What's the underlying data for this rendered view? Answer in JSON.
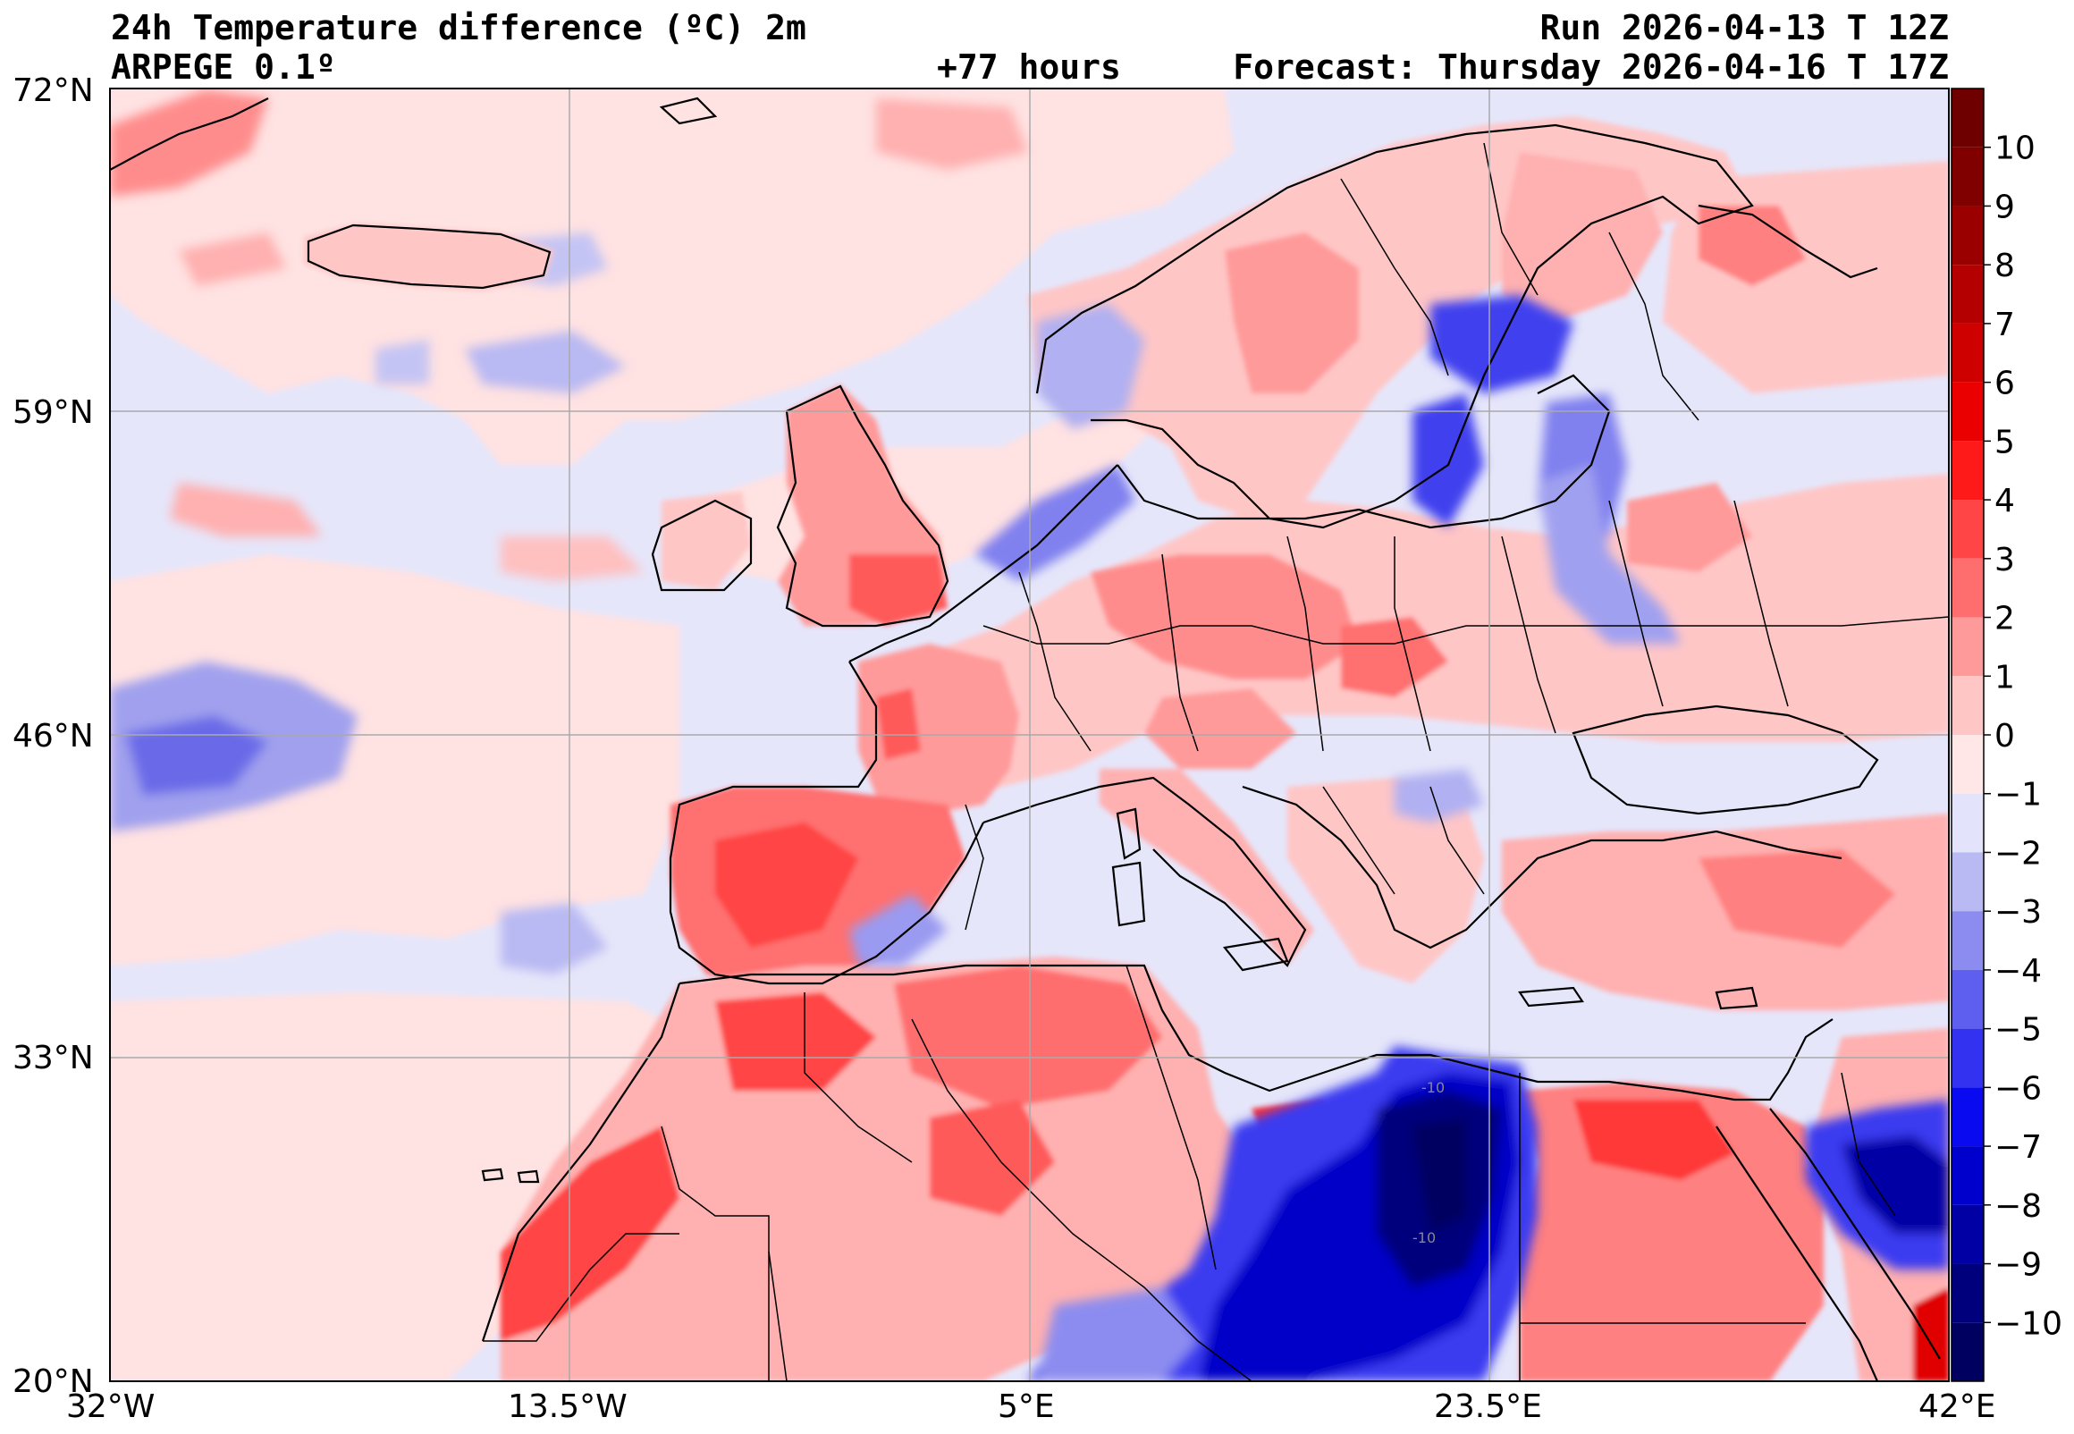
{
  "header": {
    "title": "24h Temperature difference (ºC) 2m",
    "model": "ARPEGE 0.1º",
    "run": "Run 2026-04-13 T 12Z",
    "lead_time": "+77 hours",
    "forecast": "Forecast: Thursday 2026-04-16 T 17Z"
  },
  "map": {
    "lon_range": [
      -32,
      42
    ],
    "lat_range": [
      20,
      72
    ],
    "lat_ticks": [
      {
        "value": 72,
        "label": "72°N"
      },
      {
        "value": 59,
        "label": "59°N"
      },
      {
        "value": 46,
        "label": "46°N"
      },
      {
        "value": 33,
        "label": "33°N"
      },
      {
        "value": 20,
        "label": "20°N"
      }
    ],
    "lon_ticks": [
      {
        "value": -32,
        "label": "32°W"
      },
      {
        "value": -13.5,
        "label": "13.5°W"
      },
      {
        "value": 5,
        "label": "5°E"
      },
      {
        "value": 23.5,
        "label": "23.5°E"
      },
      {
        "value": 42,
        "label": "42°E"
      }
    ],
    "gridlines": true,
    "contour_label": "-10"
  },
  "colorbar": {
    "levels": [
      {
        "value": 10,
        "label": "10",
        "color": "#800000"
      },
      {
        "value": 9,
        "label": "9",
        "color": "#9a0000"
      },
      {
        "value": 8,
        "label": "8",
        "color": "#b40000"
      },
      {
        "value": 7,
        "label": "7",
        "color": "#cf0000"
      },
      {
        "value": 6,
        "label": "6",
        "color": "#ea0000"
      },
      {
        "value": 5,
        "label": "5",
        "color": "#ff1a1a"
      },
      {
        "value": 4,
        "label": "4",
        "color": "#ff4545"
      },
      {
        "value": 3,
        "label": "3",
        "color": "#ff6e6e"
      },
      {
        "value": 2,
        "label": "2",
        "color": "#ff9a9a"
      },
      {
        "value": 1,
        "label": "1",
        "color": "#ffc6c6"
      },
      {
        "value": 0,
        "label": "0",
        "color": "#ffe7e7"
      },
      {
        "value": -1,
        "label": "−1",
        "color": "#e3e3fb"
      },
      {
        "value": -2,
        "label": "−2",
        "color": "#b9b9f3"
      },
      {
        "value": -3,
        "label": "−3",
        "color": "#8c8cf0"
      },
      {
        "value": -4,
        "label": "−4",
        "color": "#5f5fef"
      },
      {
        "value": -5,
        "label": "−5",
        "color": "#3232f0"
      },
      {
        "value": -6,
        "label": "−6",
        "color": "#0a0af0"
      },
      {
        "value": -7,
        "label": "−7",
        "color": "#0000cc"
      },
      {
        "value": -8,
        "label": "−8",
        "color": "#0000a5"
      },
      {
        "value": -9,
        "label": "−9",
        "color": "#00007c"
      },
      {
        "value": -10,
        "label": "−10",
        "color": "#000060"
      }
    ],
    "top_color": "#6e0000",
    "bottom_color": "#00004a"
  },
  "palette": {
    "ocean_base": "#e6e6fa",
    "neutral_pos": "#ffe2e2",
    "coast": "#000000",
    "grid": "#a9a9a9"
  }
}
